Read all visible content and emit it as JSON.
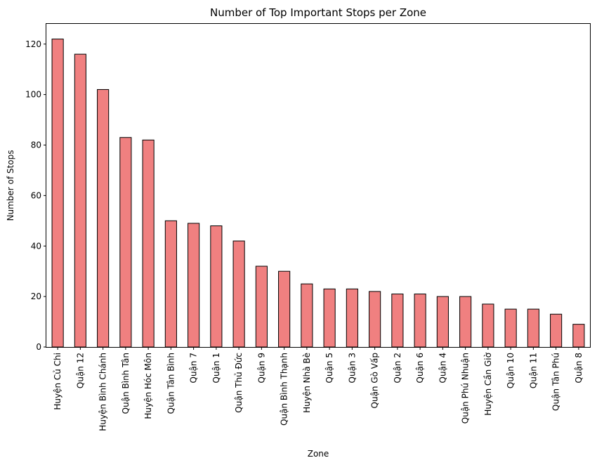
{
  "chart_data": {
    "type": "bar",
    "title": "Number of Top Important Stops per Zone",
    "xlabel": "Zone",
    "ylabel": "Number of Stops",
    "ylim": [
      0,
      128
    ],
    "yticks": [
      0,
      20,
      40,
      60,
      80,
      100,
      120
    ],
    "grid": false,
    "colors": {
      "bar_fill": "#f08080",
      "bar_edge": "#000000"
    },
    "categories": [
      "Huyện Củ Chi",
      "Quận 12",
      "Huyện Bình Chánh",
      "Quận Bình Tân",
      "Huyện Hóc Môn",
      "Quận Tân Bình",
      "Quận 7",
      "Quận 1",
      "Quận Thủ Đức",
      "Quận 9",
      "Quận Bình Thạnh",
      "Huyện Nhà Bè",
      "Quận 5",
      "Quận 3",
      "Quận Gò Vấp",
      "Quận 2",
      "Quận 6",
      "Quận 4",
      "Quận Phú Nhuận",
      "Huyện Cần Giờ",
      "Quận 10",
      "Quận 11",
      "Quận Tân Phú",
      "Quận 8"
    ],
    "values": [
      122,
      116,
      102,
      83,
      82,
      50,
      49,
      48,
      42,
      32,
      30,
      25,
      23,
      23,
      22,
      21,
      21,
      20,
      20,
      17,
      15,
      15,
      13,
      9
    ]
  }
}
